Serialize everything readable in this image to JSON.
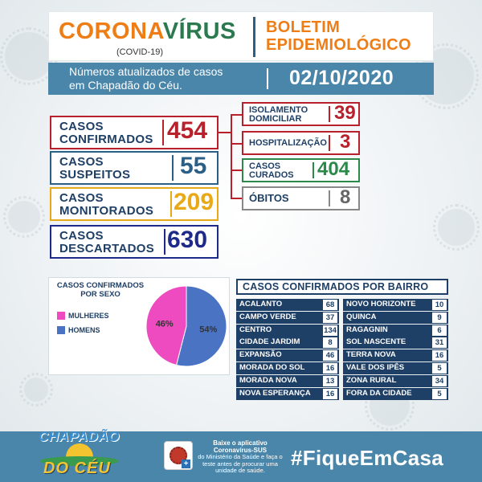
{
  "header": {
    "title_part1": "CORONA",
    "title_part2": "VÍRUS",
    "subtitle": "(COVID-19)",
    "bulletin_line1": "BOLETIM",
    "bulletin_line2": "EPIDEMIOLÓGICO"
  },
  "subheader": {
    "text_line1": "Números atualizados de casos",
    "text_line2": "em Chapadão do Céu.",
    "date": "02/10/2020"
  },
  "stats": {
    "confirmed": {
      "line1": "CASOS",
      "line2": "CONFIRMADOS",
      "value": "454",
      "color": "#b8202c"
    },
    "suspected": {
      "line1": "CASOS",
      "line2": "SUSPEITOS",
      "value": "55",
      "color": "#2c5f86"
    },
    "monitored": {
      "line1": "CASOS",
      "line2": "MONITORADOS",
      "value": "209",
      "color": "#e9a916"
    },
    "discarded": {
      "line1": "CASOS",
      "line2": "DESCARTADOS",
      "value": "630",
      "color": "#1e2a8a"
    }
  },
  "breakdown": {
    "isolation": {
      "line1": "ISOLAMENTO",
      "line2": "DOMICILIAR",
      "value": "39",
      "color": "#b8202c"
    },
    "hospitalization": {
      "label": "HOSPITALIZAÇÃO",
      "value": "3",
      "color": "#b8202c"
    },
    "cured": {
      "line1": "CASOS",
      "line2": "CURADOS",
      "value": "404",
      "color": "#2b8a4a"
    },
    "deaths": {
      "label": "ÓBITOS",
      "value": "8",
      "color": "#666666"
    }
  },
  "sex_card": {
    "title": "CASOS CONFIRMADOS POR SEXO",
    "legend_women": "MULHERES",
    "legend_men": "HOMENS",
    "color_women": "#ee4bc0",
    "color_men": "#4a73c4"
  },
  "chart_data": {
    "type": "pie",
    "title": "CASOS CONFIRMADOS POR SEXO",
    "categories": [
      "MULHERES",
      "HOMENS"
    ],
    "values": [
      46,
      54
    ],
    "labels": [
      "46%",
      "54%"
    ],
    "colors": [
      "#ee4bc0",
      "#4a73c4"
    ]
  },
  "bairros": {
    "title": "CASOS CONFIRMADOS POR BAIRRO",
    "left": [
      {
        "name": "ACALANTO",
        "value": "68"
      },
      {
        "name": "CAMPO VERDE",
        "value": "37"
      },
      {
        "name": "CENTRO",
        "value": "134"
      },
      {
        "name": "CIDADE JARDIM",
        "value": "8"
      },
      {
        "name": "EXPANSÃO",
        "value": "46"
      },
      {
        "name": "MORADA DO SOL",
        "value": "16"
      },
      {
        "name": "MORADA NOVA",
        "value": "13"
      },
      {
        "name": "NOVA ESPERANÇA",
        "value": "16"
      }
    ],
    "right": [
      {
        "name": "NOVO HORIZONTE",
        "value": "10"
      },
      {
        "name": "QUINCA",
        "value": "9"
      },
      {
        "name": "RAGAGNIN",
        "value": "6"
      },
      {
        "name": "SOL NASCENTE",
        "value": "31"
      },
      {
        "name": "TERRA NOVA",
        "value": "16"
      },
      {
        "name": "VALE DOS IPÊS",
        "value": "5"
      },
      {
        "name": "ZONA RURAL",
        "value": "34"
      },
      {
        "name": "FORA DA CIDADE",
        "value": "5"
      }
    ]
  },
  "footer": {
    "logo_line1": "CHAPADÃO",
    "logo_line2": "DO CÉU",
    "app_title": "Baixe o aplicativo",
    "app_name": "Coronavírus-SUS",
    "app_desc": "do Ministério da Saúde e faça o teste antes de procurar uma unidade de saúde.",
    "hashtag": "#FiqueEmCasa"
  }
}
